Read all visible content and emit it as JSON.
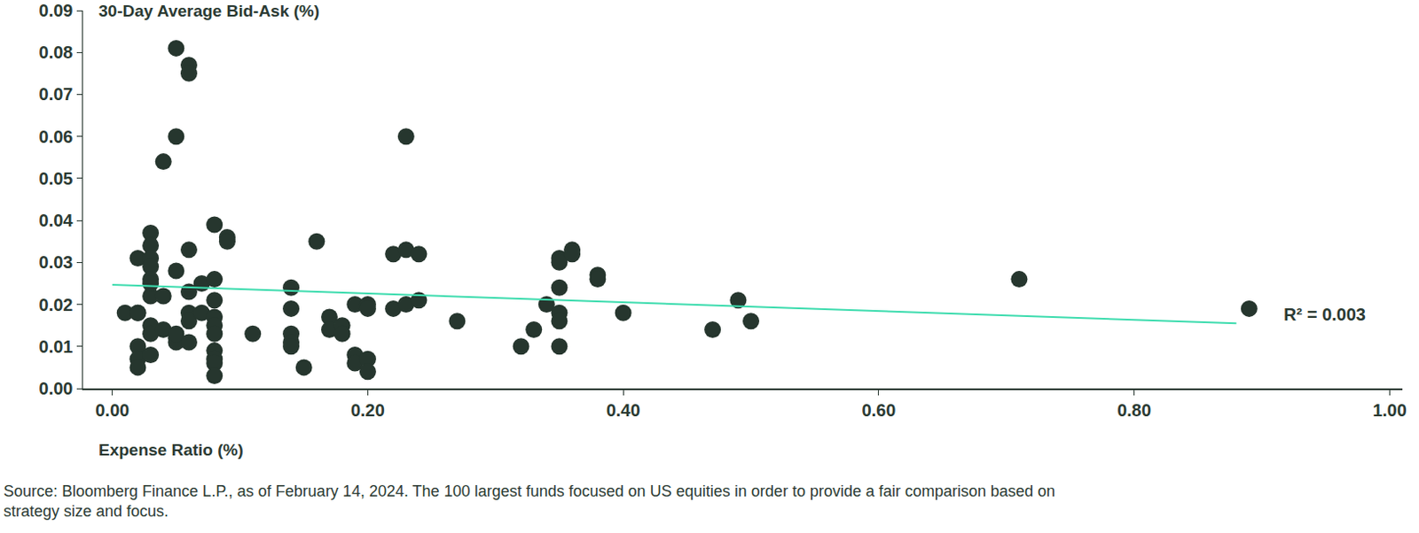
{
  "chart_data": {
    "type": "scatter",
    "xlabel": "Expense Ratio (%)",
    "ylabel": "30-Day Average Bid-Ask (%)",
    "note": "Source: Bloomberg Finance L.P., as of February 14, 2024. The 100 largest funds focused on US equities in order to provide a fair comparison based on strategy size and focus.",
    "color": "#26362e",
    "marker": "circle",
    "grid": false,
    "x": [
      0.01,
      0.02,
      0.02,
      0.02,
      0.02,
      0.02,
      0.02,
      0.03,
      0.03,
      0.03,
      0.03,
      0.03,
      0.03,
      0.03,
      0.03,
      0.03,
      0.03,
      0.04,
      0.04,
      0.04,
      0.05,
      0.05,
      0.05,
      0.05,
      0.05,
      0.05,
      0.06,
      0.06,
      0.06,
      0.06,
      0.06,
      0.06,
      0.06,
      0.07,
      0.07,
      0.08,
      0.08,
      0.08,
      0.08,
      0.08,
      0.08,
      0.08,
      0.08,
      0.08,
      0.08,
      0.09,
      0.09,
      0.11,
      0.14,
      0.14,
      0.14,
      0.14,
      0.14,
      0.15,
      0.16,
      0.17,
      0.17,
      0.18,
      0.18,
      0.19,
      0.19,
      0.19,
      0.2,
      0.2,
      0.2,
      0.2,
      0.22,
      0.22,
      0.23,
      0.23,
      0.23,
      0.24,
      0.24,
      0.27,
      0.32,
      0.33,
      0.34,
      0.35,
      0.35,
      0.35,
      0.35,
      0.35,
      0.35,
      0.36,
      0.36,
      0.38,
      0.38,
      0.4,
      0.47,
      0.49,
      0.5,
      0.71,
      0.89
    ],
    "values": [
      0.018,
      0.031,
      0.018,
      0.01,
      0.007,
      0.005,
      0.018,
      0.037,
      0.034,
      0.031,
      0.029,
      0.026,
      0.022,
      0.015,
      0.013,
      0.008,
      0.025,
      0.054,
      0.022,
      0.014,
      0.081,
      0.06,
      0.028,
      0.012,
      0.011,
      0.013,
      0.077,
      0.075,
      0.033,
      0.023,
      0.018,
      0.016,
      0.011,
      0.025,
      0.018,
      0.039,
      0.026,
      0.021,
      0.017,
      0.015,
      0.013,
      0.009,
      0.007,
      0.006,
      0.003,
      0.036,
      0.035,
      0.013,
      0.024,
      0.019,
      0.013,
      0.011,
      0.01,
      0.005,
      0.035,
      0.017,
      0.014,
      0.015,
      0.013,
      0.02,
      0.008,
      0.006,
      0.02,
      0.019,
      0.007,
      0.004,
      0.032,
      0.019,
      0.06,
      0.033,
      0.02,
      0.032,
      0.021,
      0.016,
      0.01,
      0.014,
      0.02,
      0.031,
      0.03,
      0.024,
      0.018,
      0.016,
      0.01,
      0.033,
      0.032,
      0.027,
      0.026,
      0.018,
      0.014,
      0.021,
      0.016,
      0.026,
      0.019
    ],
    "trendline": {
      "x": [
        0,
        0.88
      ],
      "values": [
        0.0247,
        0.0155
      ],
      "color": "#3ddcae",
      "label": "R² = 0.003"
    },
    "xlim": [
      -0.023,
      1.01
    ],
    "xticks": [
      {
        "value": 0,
        "label": "0.00"
      },
      {
        "value": 0.2,
        "label": "0.20"
      },
      {
        "value": 0.4,
        "label": "0.40"
      },
      {
        "value": 0.6,
        "label": "0.60"
      },
      {
        "value": 0.8,
        "label": "0.80"
      },
      {
        "value": 1,
        "label": "1.00"
      }
    ],
    "ylim": [
      0,
      0.09
    ],
    "yticks": [
      {
        "value": 0,
        "label": "0.00"
      },
      {
        "value": 0.01,
        "label": "0.01"
      },
      {
        "value": 0.02,
        "label": "0.02"
      },
      {
        "value": 0.03,
        "label": "0.03"
      },
      {
        "value": 0.04,
        "label": "0.04"
      },
      {
        "value": 0.05,
        "label": "0.05"
      },
      {
        "value": 0.06,
        "label": "0.06"
      },
      {
        "value": 0.07,
        "label": "0.07"
      },
      {
        "value": 0.08,
        "label": "0.08"
      },
      {
        "value": 0.09,
        "label": "0.09"
      }
    ]
  }
}
